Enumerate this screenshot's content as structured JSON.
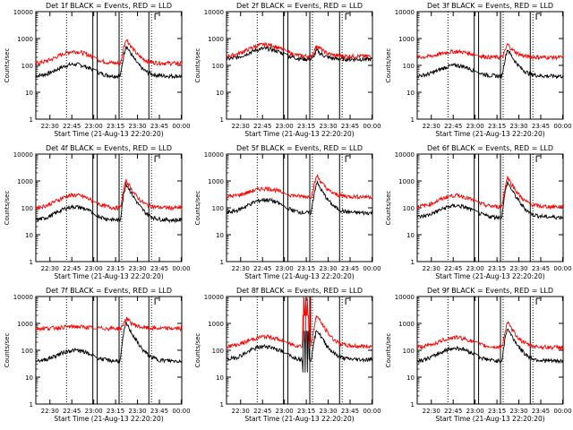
{
  "colors": {
    "events": "#000000",
    "lld": "#ff0000",
    "axis": "#000000"
  },
  "panel_ylabel": "Counts/sec",
  "panel_xlabel": "Start Time (21-Aug-13 22:20:20)",
  "chart_data": [
    {
      "type": "line",
      "title": "Det 1f BLACK = Events, RED = LLD",
      "y_scale": "log",
      "ylim": [
        1,
        10000
      ],
      "yticks": [
        "1",
        "10",
        "100",
        "1000",
        "10000"
      ],
      "xticks": [
        "22:30",
        "22:45",
        "23:00",
        "23:15",
        "23:30",
        "23:45",
        "00:00"
      ],
      "series": [
        {
          "name": "Events",
          "baseline": 40,
          "hump": 110,
          "peak": 550,
          "spike": false
        },
        {
          "name": "LLD",
          "baseline": 120,
          "hump": 330,
          "peak": 1000,
          "spike": false
        }
      ]
    },
    {
      "type": "line",
      "title": "Det 2f BLACK = Events, RED = LLD",
      "y_scale": "log",
      "ylim": [
        1,
        10000
      ],
      "yticks": [
        "1",
        "10",
        "100",
        "1000",
        "10000"
      ],
      "xticks": [
        "22:30",
        "22:45",
        "23:00",
        "23:15",
        "23:30",
        "23:45",
        "00:00"
      ],
      "series": [
        {
          "name": "Events",
          "baseline": 170,
          "hump": 420,
          "peak": 370,
          "spike": false
        },
        {
          "name": "LLD",
          "baseline": 220,
          "hump": 600,
          "peak": 580,
          "spike": false
        }
      ]
    },
    {
      "type": "line",
      "title": "Det 3f BLACK = Events, RED = LLD",
      "y_scale": "log",
      "ylim": [
        1,
        10000
      ],
      "yticks": [
        "1",
        "10",
        "100",
        "1000",
        "10000"
      ],
      "xticks": [
        "22:30",
        "22:45",
        "23:00",
        "23:15",
        "23:30",
        "23:45",
        "00:00"
      ],
      "series": [
        {
          "name": "Events",
          "baseline": 40,
          "hump": 100,
          "peak": 400,
          "spike": false
        },
        {
          "name": "LLD",
          "baseline": 200,
          "hump": 330,
          "peak": 620,
          "spike": false
        }
      ]
    },
    {
      "type": "line",
      "title": "Det 4f BLACK = Events, RED = LLD",
      "y_scale": "log",
      "ylim": [
        1,
        10000
      ],
      "yticks": [
        "1",
        "10",
        "100",
        "1000",
        "10000"
      ],
      "xticks": [
        "22:30",
        "22:45",
        "23:00",
        "23:15",
        "23:30",
        "23:45",
        "00:00"
      ],
      "series": [
        {
          "name": "Events",
          "baseline": 35,
          "hump": 110,
          "peak": 800,
          "spike": false
        },
        {
          "name": "LLD",
          "baseline": 100,
          "hump": 300,
          "peak": 1050,
          "spike": false
        }
      ]
    },
    {
      "type": "line",
      "title": "Det 5f BLACK = Events, RED = LLD",
      "y_scale": "log",
      "ylim": [
        1,
        10000
      ],
      "yticks": [
        "1",
        "10",
        "100",
        "1000",
        "10000"
      ],
      "xticks": [
        "22:30",
        "22:45",
        "23:00",
        "23:15",
        "23:30",
        "23:45",
        "00:00"
      ],
      "series": [
        {
          "name": "Events",
          "baseline": 65,
          "hump": 200,
          "peak": 900,
          "spike": false
        },
        {
          "name": "LLD",
          "baseline": 260,
          "hump": 520,
          "peak": 1600,
          "spike": false
        }
      ]
    },
    {
      "type": "line",
      "title": "Det 6f BLACK = Events, RED = LLD",
      "y_scale": "log",
      "ylim": [
        1,
        10000
      ],
      "yticks": [
        "1",
        "10",
        "100",
        "1000",
        "10000"
      ],
      "xticks": [
        "22:30",
        "22:45",
        "23:00",
        "23:15",
        "23:30",
        "23:45",
        "00:00"
      ],
      "series": [
        {
          "name": "Events",
          "baseline": 45,
          "hump": 120,
          "peak": 900,
          "spike": false
        },
        {
          "name": "LLD",
          "baseline": 110,
          "hump": 290,
          "peak": 1400,
          "spike": false
        }
      ]
    },
    {
      "type": "line",
      "title": "Det 7f BLACK = Events, RED = LLD",
      "y_scale": "log",
      "ylim": [
        1,
        10000
      ],
      "yticks": [
        "1",
        "10",
        "100",
        "1000",
        "10000"
      ],
      "xticks": [
        "22:30",
        "22:45",
        "23:00",
        "23:15",
        "23:30",
        "23:45",
        "00:00"
      ],
      "series": [
        {
          "name": "Events",
          "baseline": 40,
          "hump": 100,
          "peak": 1050,
          "spike": false
        },
        {
          "name": "LLD",
          "baseline": 650,
          "hump": 760,
          "peak": 1600,
          "spike": false
        }
      ]
    },
    {
      "type": "line",
      "title": "Det 8f BLACK = Events, RED = LLD",
      "y_scale": "log",
      "ylim": [
        1,
        10000
      ],
      "yticks": [
        "1",
        "10",
        "100",
        "1000",
        "10000"
      ],
      "xticks": [
        "22:30",
        "22:45",
        "23:00",
        "23:15",
        "23:30",
        "23:45",
        "00:00"
      ],
      "series": [
        {
          "name": "Events",
          "baseline": 45,
          "hump": 140,
          "peak": 600,
          "spike": true
        },
        {
          "name": "LLD",
          "baseline": 140,
          "hump": 320,
          "peak": 2000,
          "spike": true
        }
      ]
    },
    {
      "type": "line",
      "title": "Det 9f BLACK = Events, RED = LLD",
      "y_scale": "log",
      "ylim": [
        1,
        10000
      ],
      "yticks": [
        "1",
        "10",
        "100",
        "1000",
        "10000"
      ],
      "xticks": [
        "22:30",
        "22:45",
        "23:00",
        "23:15",
        "23:30",
        "23:45",
        "00:00"
      ],
      "series": [
        {
          "name": "Events",
          "baseline": 40,
          "hump": 120,
          "peak": 650,
          "spike": false
        },
        {
          "name": "LLD",
          "baseline": 130,
          "hump": 300,
          "peak": 1100,
          "spike": false
        }
      ]
    }
  ]
}
